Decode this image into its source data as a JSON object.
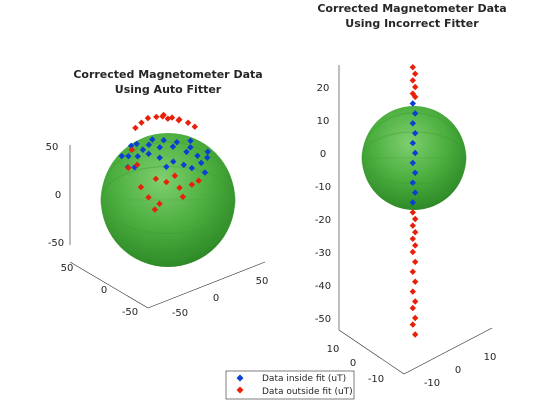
{
  "chart_data": [
    {
      "type": "scatter",
      "title": [
        "Corrected Magnetometer Data",
        "Using Auto Fitter"
      ],
      "surface": "sphere",
      "sphere_radius": 50,
      "sphere_color": "#4caf3f",
      "xlim": [
        -60,
        60
      ],
      "ylim": [
        -60,
        60
      ],
      "zlim": [
        -60,
        60
      ],
      "x_ticks": [
        "-50",
        "0",
        "50"
      ],
      "y_ticks": [
        "50",
        "0",
        "-50"
      ],
      "z_ticks": [
        "50",
        "0",
        "-50"
      ],
      "grid": false,
      "series": [
        {
          "name": "Data inside fit (uT)",
          "color": "#0a3fd4",
          "marker": "diamond",
          "points": [
            [
              -28,
              -6,
              41
            ],
            [
              -24,
              -4,
              43
            ],
            [
              -20,
              2,
              40
            ],
            [
              -16,
              6,
              45
            ],
            [
              -12,
              -2,
              47
            ],
            [
              -8,
              10,
              44
            ],
            [
              -4,
              4,
              48
            ],
            [
              2,
              12,
              45
            ],
            [
              6,
              6,
              47
            ],
            [
              12,
              16,
              42
            ],
            [
              16,
              10,
              44
            ],
            [
              20,
              20,
              40
            ],
            [
              -32,
              6,
              36
            ],
            [
              -26,
              14,
              38
            ],
            [
              -18,
              18,
              41
            ],
            [
              -10,
              22,
              39
            ],
            [
              0,
              26,
              37
            ],
            [
              8,
              28,
              35
            ],
            [
              22,
              26,
              36
            ],
            [
              28,
              18,
              38
            ],
            [
              30,
              8,
              40
            ],
            [
              -34,
              16,
              30
            ],
            [
              -30,
              24,
              32
            ],
            [
              -36,
              -2,
              34
            ],
            [
              14,
              30,
              33
            ],
            [
              24,
              32,
              30
            ],
            [
              -6,
              30,
              34
            ],
            [
              18,
              -2,
              46
            ]
          ]
        },
        {
          "name": "Data outside fit (uT)",
          "color": "#e8200a",
          "marker": "diamond",
          "points": [
            [
              -12,
              -24,
              58
            ],
            [
              -6,
              -20,
              60
            ],
            [
              0,
              -22,
              61
            ],
            [
              6,
              -18,
              60
            ],
            [
              12,
              -20,
              58
            ],
            [
              18,
              -14,
              57
            ],
            [
              -18,
              -18,
              56
            ],
            [
              -2,
              -14,
              62
            ],
            [
              10,
              -10,
              60
            ],
            [
              22,
              -6,
              56
            ],
            [
              -24,
              -10,
              54
            ],
            [
              4,
              -26,
              57
            ],
            [
              -30,
              10,
              42
            ],
            [
              -34,
              18,
              30
            ],
            [
              -28,
              24,
              34
            ],
            [
              -14,
              28,
              24
            ],
            [
              -6,
              30,
              22
            ],
            [
              4,
              32,
              18
            ],
            [
              14,
              30,
              20
            ],
            [
              20,
              26,
              22
            ],
            [
              -20,
              30,
              10
            ],
            [
              -12,
              34,
              6
            ],
            [
              6,
              36,
              12
            ],
            [
              -26,
              30,
              18
            ],
            [
              0,
              34,
              28
            ],
            [
              -16,
              36,
              2
            ]
          ]
        }
      ]
    },
    {
      "type": "scatter",
      "title": [
        "Corrected Magnetometer Data",
        "Using Incorrect Fitter"
      ],
      "surface": "sphere",
      "sphere_radius": 16,
      "sphere_color": "#4caf3f",
      "xlim": [
        -15,
        15
      ],
      "ylim": [
        -15,
        15
      ],
      "zlim": [
        -57,
        27
      ],
      "x_ticks": [
        "-10",
        "0",
        "10"
      ],
      "y_ticks": [
        "10",
        "0",
        "-10"
      ],
      "z_ticks": [
        "20",
        "10",
        "0",
        "-10",
        "-20",
        "-30",
        "-40",
        "-50"
      ],
      "grid": false,
      "series": [
        {
          "name": "Data inside fit (uT)",
          "color": "#0a3fd4",
          "marker": "diamond",
          "points": [
            [
              0,
              0,
              15
            ],
            [
              0,
              0,
              12
            ],
            [
              0,
              0,
              9
            ],
            [
              0,
              0,
              6
            ],
            [
              0,
              0,
              3
            ],
            [
              0,
              0,
              0
            ],
            [
              0,
              0,
              -3
            ],
            [
              0,
              0,
              -6
            ],
            [
              0,
              0,
              -9
            ],
            [
              0,
              0,
              -12
            ],
            [
              0,
              0,
              -15
            ]
          ]
        },
        {
          "name": "Data outside fit (uT)",
          "color": "#e8200a",
          "marker": "diamond",
          "points": [
            [
              0,
              0,
              26
            ],
            [
              0,
              0,
              24
            ],
            [
              0,
              0,
              22
            ],
            [
              0,
              0,
              20
            ],
            [
              0,
              0,
              18
            ],
            [
              0,
              0,
              17
            ],
            [
              0,
              0,
              -18
            ],
            [
              0,
              0,
              -20
            ],
            [
              0,
              0,
              -22
            ],
            [
              0,
              0,
              -24
            ],
            [
              0,
              0,
              -26
            ],
            [
              0,
              0,
              -28
            ],
            [
              0,
              0,
              -30
            ],
            [
              0,
              0,
              -33
            ],
            [
              0,
              0,
              -36
            ],
            [
              0,
              0,
              -39
            ],
            [
              0,
              0,
              -42
            ],
            [
              0,
              0,
              -45
            ],
            [
              0,
              0,
              -47
            ],
            [
              0,
              0,
              -50
            ],
            [
              0,
              0,
              -52
            ],
            [
              0,
              0,
              -55
            ]
          ]
        }
      ]
    }
  ],
  "legend": {
    "entries": [
      {
        "label": "Data inside fit (uT)",
        "color": "#0a3fd4"
      },
      {
        "label": "Data outside fit (uT)",
        "color": "#e8200a"
      }
    ]
  }
}
